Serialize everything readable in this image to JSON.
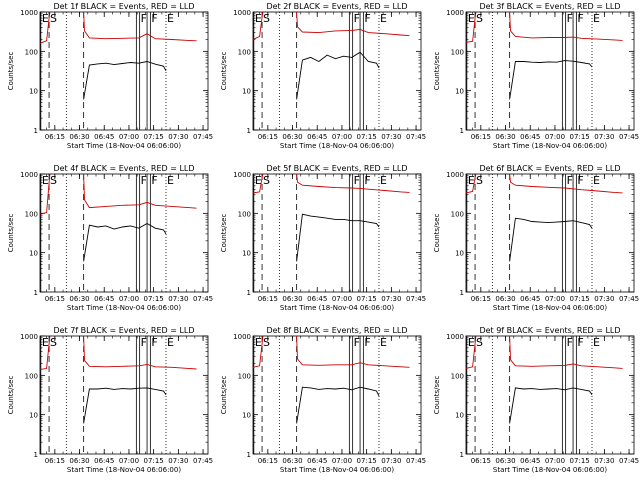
{
  "page": {
    "background": "#ffffff"
  },
  "chart_data": {
    "type": "line",
    "common": {
      "ylabel": "Counts/sec",
      "xlabel": "Start Time (18-Nov-04 06:06:00)",
      "title_suffix": " BLACK = Events, RED = LLD",
      "y_scale": "log",
      "ylim": [
        1,
        1000
      ],
      "y_ticks": [
        "1",
        "10",
        "100",
        "1000"
      ],
      "x_ticks": [
        "06:15",
        "06:30",
        "06:45",
        "07:00",
        "07:15",
        "07:30",
        "07:45"
      ],
      "x_tick_minutes": [
        9,
        24,
        39,
        54,
        69,
        84,
        99
      ],
      "xlim_minutes": [
        0,
        102
      ],
      "series_colors": {
        "events": "#000000",
        "lld": "#cc0000"
      },
      "markers": [
        {
          "label": "E",
          "minute": 0.5,
          "style": "solid"
        },
        {
          "label": "S",
          "minute": 5.5,
          "style": "dashed"
        },
        {
          "label": "",
          "minute": 16,
          "style": "dotted"
        },
        {
          "label": "",
          "minute": 26.5,
          "style": "dashed"
        },
        {
          "label": "",
          "minute": 58.5,
          "style": "solid"
        },
        {
          "label": "F",
          "minute": 60.5,
          "style": "solid"
        },
        {
          "label": "",
          "minute": 65,
          "style": "solid"
        },
        {
          "label": "F",
          "minute": 67,
          "style": "solid"
        },
        {
          "label": "E",
          "minute": 76.5,
          "style": "dotted"
        }
      ],
      "events_x_minutes": [
        26.5,
        30,
        35,
        40,
        45,
        50,
        55,
        60,
        65,
        70,
        75,
        76.5
      ],
      "lld_x_minutes": [
        0,
        4,
        5.5,
        6,
        26.5,
        27,
        30,
        40,
        50,
        60,
        65,
        70,
        80,
        90,
        95
      ]
    },
    "panels": [
      {
        "title": "Det 1f",
        "events": [
          6,
          45,
          48,
          50,
          46,
          49,
          52,
          50,
          55,
          47,
          42,
          32
        ],
        "lld": [
          160,
          185,
          700,
          1000,
          1000,
          330,
          220,
          210,
          215,
          220,
          280,
          210,
          200,
          190,
          185
        ]
      },
      {
        "title": "Det 2f",
        "events": [
          6,
          60,
          70,
          55,
          80,
          65,
          75,
          70,
          95,
          55,
          50,
          38
        ],
        "lld": [
          200,
          240,
          750,
          1000,
          1000,
          420,
          310,
          300,
          330,
          340,
          360,
          300,
          280,
          260,
          250
        ]
      },
      {
        "title": "Det 3f",
        "events": [
          6,
          55,
          55,
          53,
          52,
          54,
          53,
          58,
          56,
          52,
          48,
          40
        ],
        "lld": [
          170,
          180,
          700,
          1000,
          1000,
          330,
          240,
          220,
          225,
          225,
          230,
          215,
          205,
          195,
          190
        ]
      },
      {
        "title": "Det 4f",
        "events": [
          6,
          50,
          45,
          48,
          40,
          45,
          48,
          42,
          55,
          42,
          38,
          30
        ],
        "lld": [
          95,
          105,
          600,
          1000,
          1000,
          220,
          140,
          150,
          160,
          165,
          190,
          160,
          150,
          140,
          135
        ]
      },
      {
        "title": "Det 5f",
        "events": [
          6,
          95,
          85,
          80,
          75,
          70,
          70,
          65,
          65,
          60,
          55,
          45
        ],
        "lld": [
          330,
          350,
          800,
          1000,
          1000,
          620,
          520,
          480,
          450,
          440,
          430,
          410,
          380,
          350,
          340
        ]
      },
      {
        "title": "Det 6f",
        "events": [
          6,
          75,
          70,
          62,
          60,
          58,
          60,
          62,
          65,
          58,
          52,
          42
        ],
        "lld": [
          330,
          360,
          800,
          1000,
          1000,
          620,
          520,
          480,
          460,
          440,
          420,
          400,
          370,
          340,
          330
        ]
      },
      {
        "title": "Det 7f",
        "events": [
          6,
          45,
          45,
          47,
          44,
          46,
          45,
          47,
          48,
          44,
          40,
          32
        ],
        "lld": [
          140,
          150,
          650,
          1000,
          1000,
          240,
          170,
          165,
          170,
          175,
          190,
          165,
          160,
          150,
          145
        ]
      },
      {
        "title": "Det 8f",
        "events": [
          6,
          50,
          48,
          44,
          46,
          45,
          47,
          43,
          50,
          45,
          40,
          30
        ],
        "lld": [
          160,
          175,
          650,
          1000,
          1000,
          260,
          185,
          180,
          185,
          185,
          210,
          185,
          175,
          165,
          160
        ]
      },
      {
        "title": "Det 9f",
        "events": [
          6,
          48,
          45,
          46,
          44,
          45,
          46,
          43,
          48,
          44,
          40,
          32
        ],
        "lld": [
          150,
          165,
          650,
          1000,
          1000,
          250,
          175,
          170,
          175,
          178,
          195,
          175,
          165,
          155,
          150
        ]
      }
    ]
  }
}
